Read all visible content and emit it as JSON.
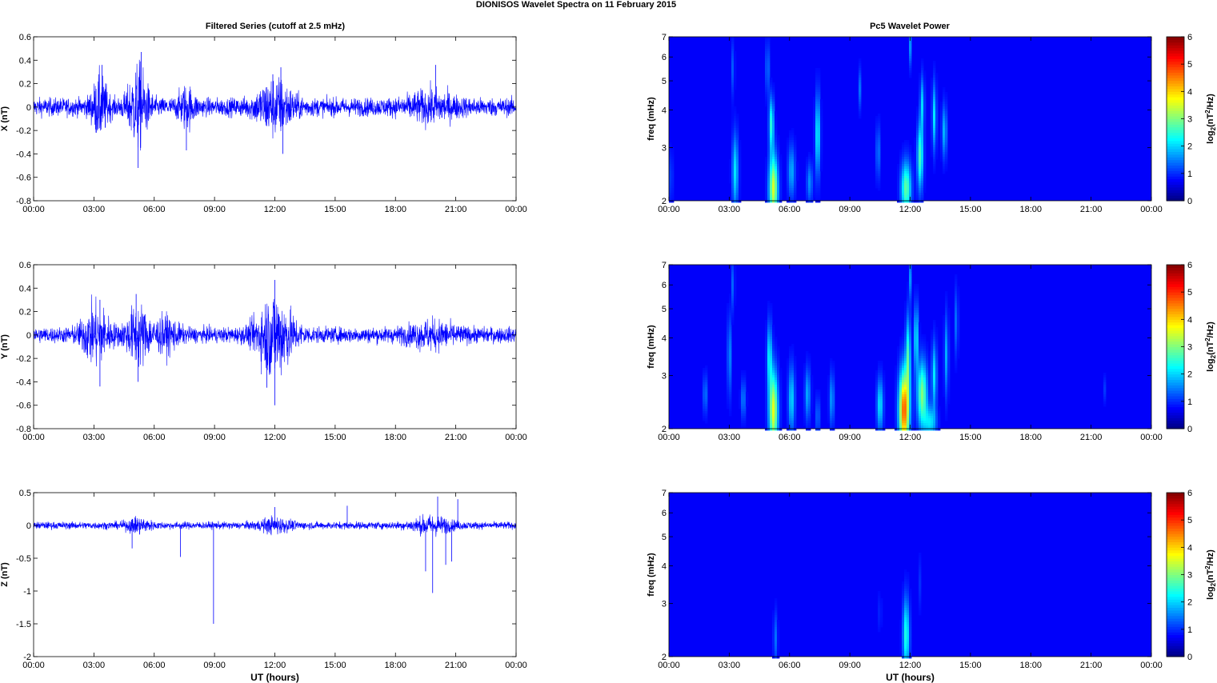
{
  "figure": {
    "title": "DIONISOS Wavelet Spectra on 11 February  2015",
    "left_title": "Filtered Series (cutoff at 2.5 mHz)",
    "right_title": "Pc5 Wavelet Power",
    "xlabel": "UT (hours)",
    "colorbar_label": "log2(nT^2/Hz)"
  },
  "chart_data": [
    {
      "type": "line",
      "panel": "X series",
      "ylabel": "X (nT)",
      "xlabel": "",
      "x_range_hours": [
        0,
        24
      ],
      "xticks": [
        "00:00",
        "03:00",
        "06:00",
        "09:00",
        "12:00",
        "15:00",
        "18:00",
        "21:00",
        "00:00"
      ],
      "ylim": [
        -0.8,
        0.6
      ],
      "yticks": [
        "0.6",
        "0.4",
        "0.2",
        "0",
        "-0.2",
        "-0.4",
        "-0.6",
        "-0.8"
      ],
      "ytick_values": [
        0.6,
        0.4,
        0.2,
        0,
        -0.2,
        -0.4,
        -0.6,
        -0.8
      ],
      "color": "#0000ff",
      "baseline_amplitude": 0.07,
      "bursts": [
        {
          "t": 3.3,
          "amp": 0.2,
          "w": 0.4
        },
        {
          "t": 5.2,
          "amp": 0.28,
          "w": 0.5
        },
        {
          "t": 7.6,
          "amp": 0.12,
          "w": 0.4
        },
        {
          "t": 12.0,
          "amp": 0.18,
          "w": 0.9
        },
        {
          "t": 19.8,
          "amp": 0.08,
          "w": 1.2
        }
      ],
      "spikes": [
        {
          "t": 5.35,
          "y": 0.47
        },
        {
          "t": 5.2,
          "y": -0.52
        },
        {
          "t": 3.4,
          "y": 0.36
        },
        {
          "t": 7.6,
          "y": -0.37
        },
        {
          "t": 12.3,
          "y": 0.34
        },
        {
          "t": 12.4,
          "y": -0.4
        },
        {
          "t": 20.0,
          "y": 0.36
        },
        {
          "t": 11.9,
          "y": 0.28
        }
      ]
    },
    {
      "type": "heatmap",
      "panel": "X wavelet",
      "ylabel": "freq (mHz)",
      "xlabel": "",
      "x_range_hours": [
        0,
        24
      ],
      "xticks": [
        "00:00",
        "03:00",
        "06:00",
        "09:00",
        "12:00",
        "15:00",
        "18:00",
        "21:00",
        "00:00"
      ],
      "y_scale": "log",
      "ylim": [
        2,
        7
      ],
      "yticks": [
        "2",
        "3",
        "4",
        "5",
        "6",
        "7"
      ],
      "ytick_values": [
        2,
        3,
        4,
        5,
        6,
        7
      ],
      "clim": [
        0,
        6
      ],
      "colorbar_ticks": [
        "0",
        "1",
        "2",
        "3",
        "4",
        "5",
        "6"
      ],
      "blobs": [
        {
          "t": 3.3,
          "f": 2.5,
          "p": 1.6,
          "wt": 0.15,
          "wf": 0.28
        },
        {
          "t": 5.2,
          "f": 2.2,
          "p": 3.2,
          "wt": 0.22,
          "wf": 0.25
        },
        {
          "t": 5.1,
          "f": 3.6,
          "p": 2.0,
          "wt": 0.12,
          "wf": 0.2
        },
        {
          "t": 4.9,
          "f": 5.5,
          "p": 1.0,
          "wt": 0.08,
          "wf": 0.2
        },
        {
          "t": 6.1,
          "f": 2.5,
          "p": 1.2,
          "wt": 0.18,
          "wf": 0.2
        },
        {
          "t": 7.4,
          "f": 3.3,
          "p": 1.8,
          "wt": 0.12,
          "wf": 0.3
        },
        {
          "t": 7.0,
          "f": 2.3,
          "p": 1.0,
          "wt": 0.15,
          "wf": 0.15
        },
        {
          "t": 3.2,
          "f": 5.5,
          "p": 0.9,
          "wt": 0.06,
          "wf": 0.2
        },
        {
          "t": 11.8,
          "f": 2.2,
          "p": 2.4,
          "wt": 0.25,
          "wf": 0.2
        },
        {
          "t": 12.0,
          "f": 6.5,
          "p": 1.0,
          "wt": 0.06,
          "wf": 0.15
        },
        {
          "t": 12.5,
          "f": 2.8,
          "p": 2.2,
          "wt": 0.15,
          "wf": 0.25
        },
        {
          "t": 12.6,
          "f": 4.2,
          "p": 1.4,
          "wt": 0.1,
          "wf": 0.2
        },
        {
          "t": 13.2,
          "f": 3.8,
          "p": 1.6,
          "wt": 0.1,
          "wf": 0.25
        },
        {
          "t": 13.7,
          "f": 3.4,
          "p": 1.3,
          "wt": 0.12,
          "wf": 0.2
        },
        {
          "t": 10.4,
          "f": 2.9,
          "p": 0.9,
          "wt": 0.1,
          "wf": 0.2
        },
        {
          "t": 9.5,
          "f": 4.7,
          "p": 0.8,
          "wt": 0.06,
          "wf": 0.15
        },
        {
          "t": 0.1,
          "f": 2.4,
          "p": 0.5,
          "wt": 0.1,
          "wf": 0.2
        }
      ]
    },
    {
      "type": "line",
      "panel": "Y series",
      "ylabel": "Y (nT)",
      "xlabel": "",
      "x_range_hours": [
        0,
        24
      ],
      "xticks": [
        "00:00",
        "03:00",
        "06:00",
        "09:00",
        "12:00",
        "15:00",
        "18:00",
        "21:00",
        "00:00"
      ],
      "ylim": [
        -0.8,
        0.6
      ],
      "yticks": [
        "0.6",
        "0.4",
        "0.2",
        "0",
        "-0.2",
        "-0.4",
        "-0.6",
        "-0.8"
      ],
      "ytick_values": [
        0.6,
        0.4,
        0.2,
        0,
        -0.2,
        -0.4,
        -0.6,
        -0.8
      ],
      "color": "#0000ff",
      "baseline_amplitude": 0.06,
      "bursts": [
        {
          "t": 3.1,
          "amp": 0.2,
          "w": 0.7
        },
        {
          "t": 5.2,
          "amp": 0.2,
          "w": 0.6
        },
        {
          "t": 6.6,
          "amp": 0.1,
          "w": 0.6
        },
        {
          "t": 12.0,
          "amp": 0.3,
          "w": 0.9
        },
        {
          "t": 19.8,
          "amp": 0.07,
          "w": 1.2
        }
      ],
      "spikes": [
        {
          "t": 12.0,
          "y": 0.47
        },
        {
          "t": 12.0,
          "y": -0.6
        },
        {
          "t": 3.3,
          "y": -0.44
        },
        {
          "t": 5.2,
          "y": -0.4
        },
        {
          "t": 3.3,
          "y": 0.3
        },
        {
          "t": 5.1,
          "y": 0.35
        },
        {
          "t": 11.6,
          "y": -0.45
        }
      ]
    },
    {
      "type": "heatmap",
      "panel": "Y wavelet",
      "ylabel": "freq (mHz)",
      "xlabel": "",
      "x_range_hours": [
        0,
        24
      ],
      "xticks": [
        "00:00",
        "03:00",
        "06:00",
        "09:00",
        "12:00",
        "15:00",
        "18:00",
        "21:00",
        "00:00"
      ],
      "y_scale": "log",
      "ylim": [
        2,
        7
      ],
      "yticks": [
        "2",
        "3",
        "4",
        "5",
        "6",
        "7"
      ],
      "ytick_values": [
        2,
        3,
        4,
        5,
        6,
        7
      ],
      "clim": [
        0,
        6
      ],
      "colorbar_ticks": [
        "0",
        "1",
        "2",
        "3",
        "4",
        "5",
        "6"
      ],
      "blobs": [
        {
          "t": 5.2,
          "f": 2.3,
          "p": 3.3,
          "wt": 0.22,
          "wf": 0.3
        },
        {
          "t": 5.0,
          "f": 3.5,
          "p": 1.6,
          "wt": 0.12,
          "wf": 0.25
        },
        {
          "t": 6.1,
          "f": 2.5,
          "p": 1.5,
          "wt": 0.16,
          "wf": 0.25
        },
        {
          "t": 6.9,
          "f": 2.6,
          "p": 1.2,
          "wt": 0.14,
          "wf": 0.2
        },
        {
          "t": 3.0,
          "f": 3.5,
          "p": 1.2,
          "wt": 0.08,
          "wf": 0.3
        },
        {
          "t": 3.2,
          "f": 6.0,
          "p": 1.0,
          "wt": 0.06,
          "wf": 0.2
        },
        {
          "t": 1.8,
          "f": 2.6,
          "p": 0.9,
          "wt": 0.1,
          "wf": 0.15
        },
        {
          "t": 3.7,
          "f": 2.5,
          "p": 0.9,
          "wt": 0.12,
          "wf": 0.15
        },
        {
          "t": 8.1,
          "f": 2.5,
          "p": 1.1,
          "wt": 0.12,
          "wf": 0.2
        },
        {
          "t": 7.4,
          "f": 2.2,
          "p": 0.8,
          "wt": 0.1,
          "wf": 0.15
        },
        {
          "t": 10.5,
          "f": 2.4,
          "p": 1.6,
          "wt": 0.16,
          "wf": 0.2
        },
        {
          "t": 11.7,
          "f": 2.3,
          "p": 4.6,
          "wt": 0.25,
          "wf": 0.3
        },
        {
          "t": 11.9,
          "f": 3.5,
          "p": 2.0,
          "wt": 0.12,
          "wf": 0.3
        },
        {
          "t": 12.6,
          "f": 2.6,
          "p": 2.6,
          "wt": 0.25,
          "wf": 0.25
        },
        {
          "t": 12.3,
          "f": 4.0,
          "p": 1.8,
          "wt": 0.1,
          "wf": 0.25
        },
        {
          "t": 13.2,
          "f": 3.0,
          "p": 1.6,
          "wt": 0.12,
          "wf": 0.25
        },
        {
          "t": 13.8,
          "f": 3.5,
          "p": 1.2,
          "wt": 0.1,
          "wf": 0.3
        },
        {
          "t": 14.3,
          "f": 4.5,
          "p": 0.9,
          "wt": 0.08,
          "wf": 0.25
        },
        {
          "t": 12.0,
          "f": 6.3,
          "p": 1.0,
          "wt": 0.06,
          "wf": 0.15
        },
        {
          "t": 13.0,
          "f": 2.1,
          "p": 1.5,
          "wt": 0.3,
          "wf": 0.12
        },
        {
          "t": 21.7,
          "f": 2.7,
          "p": 0.5,
          "wt": 0.06,
          "wf": 0.1
        }
      ]
    },
    {
      "type": "line",
      "panel": "Z series",
      "ylabel": "Z (nT)",
      "xlabel": "UT (hours)",
      "x_range_hours": [
        0,
        24
      ],
      "xticks": [
        "00:00",
        "03:00",
        "06:00",
        "09:00",
        "12:00",
        "15:00",
        "18:00",
        "21:00",
        "00:00"
      ],
      "ylim": [
        -2,
        0.5
      ],
      "yticks": [
        "0.5",
        "0",
        "-0.5",
        "-1",
        "-1.5",
        "-2"
      ],
      "ytick_values": [
        0.5,
        0,
        -0.5,
        -1,
        -1.5,
        -2
      ],
      "color": "#0000ff",
      "baseline_amplitude": 0.05,
      "bursts": [
        {
          "t": 5.2,
          "amp": 0.08,
          "w": 0.6
        },
        {
          "t": 12.0,
          "amp": 0.08,
          "w": 0.8
        },
        {
          "t": 19.8,
          "amp": 0.1,
          "w": 1.0
        }
      ],
      "spikes": [
        {
          "t": 8.95,
          "y": -1.5
        },
        {
          "t": 19.85,
          "y": -1.03
        },
        {
          "t": 19.5,
          "y": -0.7
        },
        {
          "t": 20.5,
          "y": -0.6
        },
        {
          "t": 20.8,
          "y": -0.55
        },
        {
          "t": 7.3,
          "y": -0.48
        },
        {
          "t": 4.9,
          "y": -0.35
        },
        {
          "t": 20.1,
          "y": 0.44
        },
        {
          "t": 21.1,
          "y": 0.4
        },
        {
          "t": 15.6,
          "y": 0.3
        },
        {
          "t": 12.0,
          "y": 0.28
        }
      ]
    },
    {
      "type": "heatmap",
      "panel": "Z wavelet",
      "ylabel": "freq (mHz)",
      "xlabel": "UT (hours)",
      "x_range_hours": [
        0,
        24
      ],
      "xticks": [
        "00:00",
        "03:00",
        "06:00",
        "09:00",
        "12:00",
        "15:00",
        "18:00",
        "21:00",
        "00:00"
      ],
      "y_scale": "log",
      "ylim": [
        2,
        7
      ],
      "yticks": [
        "2",
        "3",
        "4",
        "5",
        "6",
        "7"
      ],
      "ytick_values": [
        2,
        3,
        4,
        5,
        6,
        7
      ],
      "clim": [
        0,
        6
      ],
      "colorbar_ticks": [
        "0",
        "1",
        "2",
        "3",
        "4",
        "5",
        "6"
      ],
      "blobs": [
        {
          "t": 11.8,
          "f": 2.35,
          "p": 2.0,
          "wt": 0.16,
          "wf": 0.28
        },
        {
          "t": 5.3,
          "f": 2.3,
          "p": 0.8,
          "wt": 0.1,
          "wf": 0.2
        },
        {
          "t": 10.5,
          "f": 2.8,
          "p": 0.5,
          "wt": 0.06,
          "wf": 0.15
        },
        {
          "t": 12.5,
          "f": 3.5,
          "p": 0.4,
          "wt": 0.05,
          "wf": 0.2
        }
      ]
    }
  ]
}
